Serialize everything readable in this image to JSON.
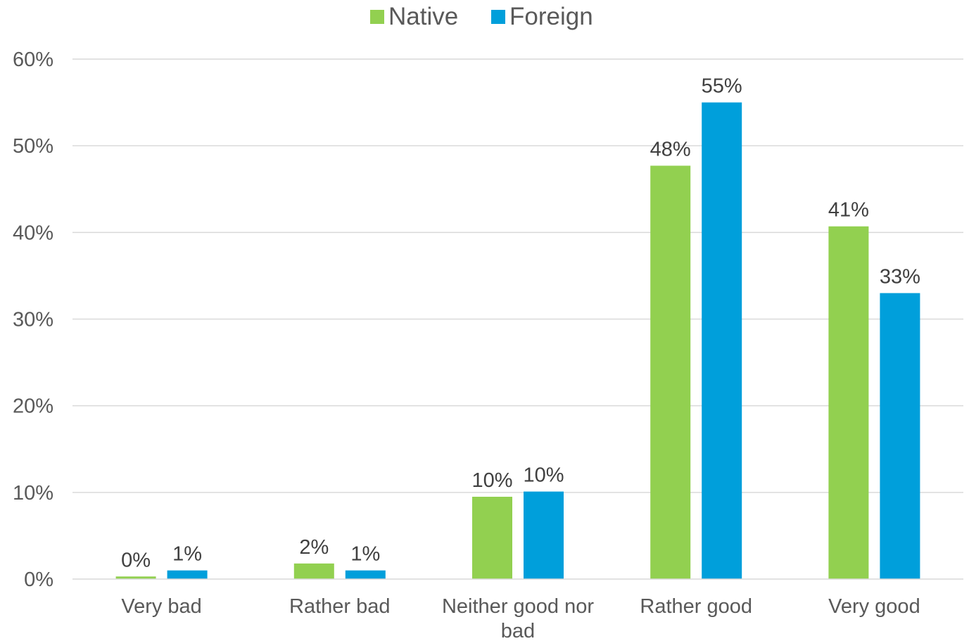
{
  "chart_data": {
    "type": "bar",
    "title": "",
    "xlabel": "",
    "ylabel": "",
    "categories": [
      "Very bad",
      "Rather bad",
      "Neither good nor bad",
      "Rather good",
      "Very good"
    ],
    "category_lines": [
      [
        "Very bad"
      ],
      [
        "Rather bad"
      ],
      [
        "Neither good nor",
        "bad"
      ],
      [
        "Rather good"
      ],
      [
        "Very good"
      ]
    ],
    "series": [
      {
        "name": "Native",
        "color": "#92d050",
        "values": [
          0.3,
          1.8,
          9.5,
          47.7,
          40.7
        ],
        "labels": [
          "0%",
          "2%",
          "10%",
          "48%",
          "41%"
        ]
      },
      {
        "name": "Foreign",
        "color": "#009fdb",
        "values": [
          1.0,
          1.0,
          10.1,
          55.0,
          33.0
        ],
        "labels": [
          "1%",
          "1%",
          "10%",
          "55%",
          "33%"
        ]
      }
    ],
    "ylim": [
      0,
      60
    ],
    "yticks": [
      0,
      10,
      20,
      30,
      40,
      50,
      60
    ],
    "ytick_labels": [
      "0%",
      "10%",
      "20%",
      "30%",
      "40%",
      "50%",
      "60%"
    ],
    "grid": true,
    "legend_position": "top-center"
  }
}
